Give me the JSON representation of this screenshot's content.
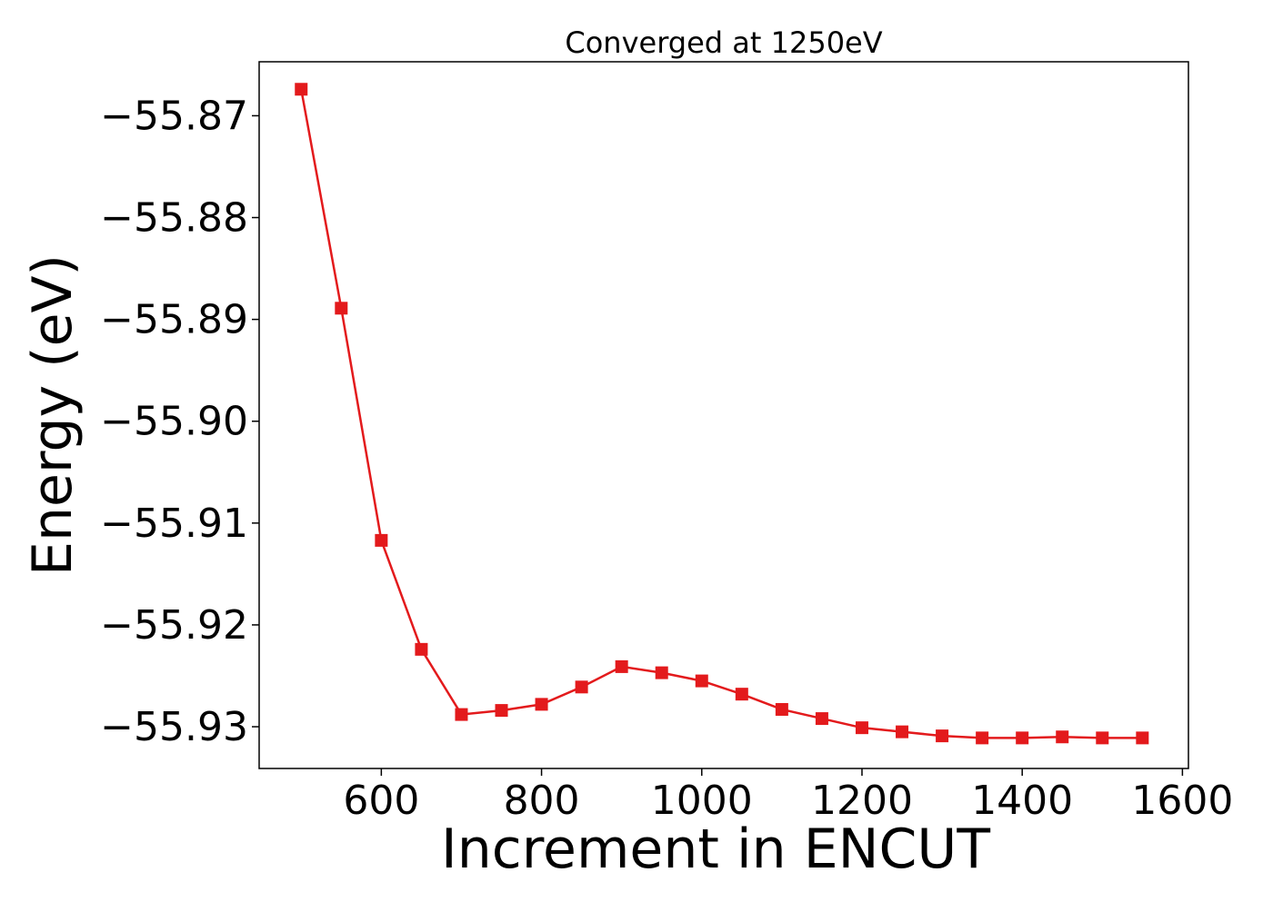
{
  "chart_data": {
    "type": "line",
    "title": "Converged at 1250eV",
    "xlabel": "Increment in ENCUT",
    "ylabel": "Energy (eV)",
    "xlim": [
      447.5,
      1607.5
    ],
    "ylim": [
      -55.9341,
      -55.8647
    ],
    "xticks": [
      600,
      800,
      1000,
      1200,
      1400,
      1600
    ],
    "yticks": [
      -55.87,
      -55.88,
      -55.89,
      -55.9,
      -55.91,
      -55.92,
      -55.93
    ],
    "grid": false,
    "series": [
      {
        "color": "#e31a1c",
        "marker": "square",
        "x": [
          500,
          550,
          600,
          650,
          700,
          750,
          800,
          850,
          900,
          950,
          1000,
          1050,
          1100,
          1150,
          1200,
          1250,
          1300,
          1350,
          1400,
          1450,
          1500,
          1550
        ],
        "y": [
          -55.8674,
          -55.8889,
          -55.9117,
          -55.9224,
          -55.9288,
          -55.9284,
          -55.9278,
          -55.9261,
          -55.9241,
          -55.9247,
          -55.9255,
          -55.9268,
          -55.9283,
          -55.9292,
          -55.9301,
          -55.9305,
          -55.9309,
          -55.9311,
          -55.9311,
          -55.931,
          -55.9311,
          -55.9311
        ]
      }
    ]
  }
}
